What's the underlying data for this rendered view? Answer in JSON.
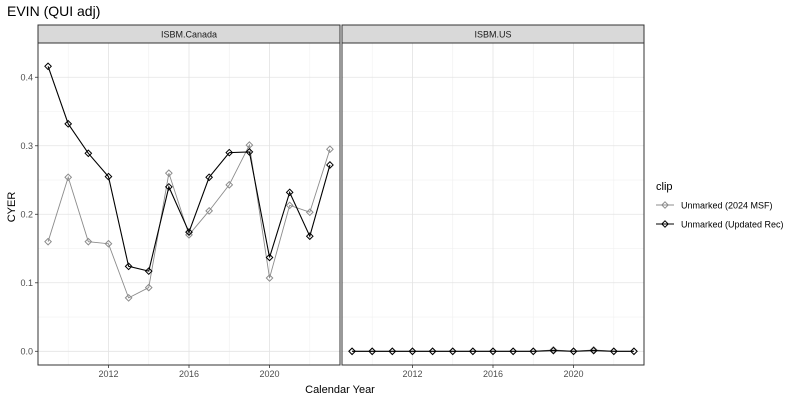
{
  "chart_data": {
    "type": "line",
    "title": "EVIN (QUI adj)",
    "xlabel": "Calendar Year",
    "ylabel": "CYER",
    "xlim": [
      2008.5,
      2023.5
    ],
    "ylim": [
      -0.02,
      0.45
    ],
    "x_ticks": [
      2012,
      2016,
      2020
    ],
    "y_ticks": [
      0.0,
      0.1,
      0.2,
      0.3,
      0.4
    ],
    "y_tick_labels": [
      "0.0",
      "0.1",
      "0.2",
      "0.3",
      "0.4"
    ],
    "grid": true,
    "legend": {
      "title": "clip",
      "position": "right",
      "entries": [
        "Unmarked (2024 MSF)",
        "Unmarked (Updated Rec)"
      ]
    },
    "series_colors": {
      "Unmarked (2024 MSF)": "#8c8c8c",
      "Unmarked (Updated Rec)": "#000000"
    },
    "panels": [
      {
        "name": "ISBM.Canada",
        "x": [
          2009,
          2010,
          2011,
          2012,
          2013,
          2014,
          2015,
          2016,
          2017,
          2018,
          2019,
          2020,
          2021,
          2022,
          2023
        ],
        "series": [
          {
            "name": "Unmarked (2024 MSF)",
            "values": [
              0.16,
              0.254,
              0.16,
              0.157,
              0.078,
              0.093,
              0.26,
              0.17,
              0.205,
              0.243,
              0.301,
              0.107,
              0.213,
              0.203,
              0.295
            ]
          },
          {
            "name": "Unmarked (Updated Rec)",
            "values": [
              0.416,
              0.332,
              0.289,
              0.255,
              0.124,
              0.117,
              0.24,
              0.174,
              0.254,
              0.29,
              0.291,
              0.137,
              0.232,
              0.168,
              0.272
            ]
          }
        ]
      },
      {
        "name": "ISBM.US",
        "x": [
          2009,
          2010,
          2011,
          2012,
          2013,
          2014,
          2015,
          2016,
          2017,
          2018,
          2019,
          2020,
          2021,
          2022,
          2023
        ],
        "series": [
          {
            "name": "Unmarked (2024 MSF)",
            "values": [
              0.0,
              0.0,
              0.0,
              0.0,
              0.0,
              0.0,
              0.0,
              0.0,
              0.0,
              0.0,
              0.002,
              0.0,
              0.002,
              0.0,
              0.0
            ]
          },
          {
            "name": "Unmarked (Updated Rec)",
            "values": [
              0.0,
              0.0,
              0.0,
              0.0,
              0.0,
              0.0,
              0.0,
              0.0,
              0.0,
              0.0,
              0.001,
              0.0,
              0.001,
              0.0,
              0.0
            ]
          }
        ]
      }
    ]
  }
}
